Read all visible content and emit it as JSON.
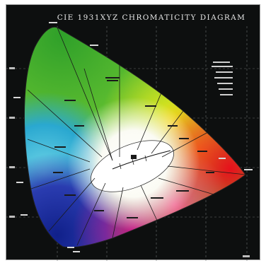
{
  "title": "CIE 1931XYZ CHROMATICITY DIAGRAM",
  "colors": {
    "background": "#0d0f0f",
    "green": "#4cc02a",
    "yellow": "#f2e818",
    "red": "#e8141e",
    "blue": "#1a2fa0",
    "cyan": "#38b8d8",
    "magenta": "#c01890",
    "white_center": "#ffffff"
  }
}
